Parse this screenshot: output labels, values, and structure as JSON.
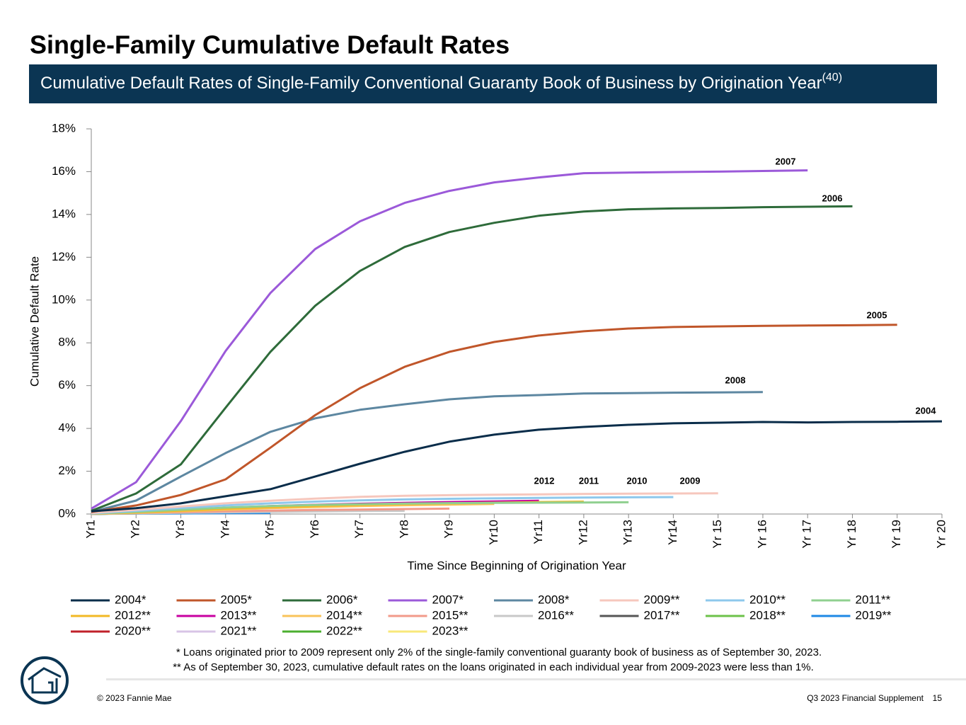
{
  "chart_data": {
    "type": "line",
    "title": "Single-Family Cumulative Default Rates",
    "subtitle": "Cumulative Default Rates of Single-Family Conventional Guaranty Book of Business by Origination Year",
    "subtitle_note": "(40)",
    "ylabel": "Cumulative Default Rate",
    "xlabel": "Time Since Beginning of Origination Year",
    "categories": [
      "Yr1",
      "Yr2",
      "Yr3",
      "Yr4",
      "Yr5",
      "Yr6",
      "Yr7",
      "Yr8",
      "Yr9",
      "Yr10",
      "Yr11",
      "Yr12",
      "Yr13",
      "Yr14",
      "Yr 15",
      "Yr 16",
      "Yr 17",
      "Yr 18",
      "Yr 19",
      "Yr 20"
    ],
    "ylim": [
      0,
      18
    ],
    "yticks": [
      {
        "value": 0,
        "label": "0%"
      },
      {
        "value": 2,
        "label": "2%"
      },
      {
        "value": 4,
        "label": "4%"
      },
      {
        "value": 6,
        "label": "6%"
      },
      {
        "value": 8,
        "label": "8%"
      },
      {
        "value": 10,
        "label": "10%"
      },
      {
        "value": 12,
        "label": "12%"
      },
      {
        "value": 14,
        "label": "14%"
      },
      {
        "value": 16,
        "label": "16%"
      },
      {
        "value": 18,
        "label": "18%"
      }
    ],
    "annotations": [
      "2007",
      "2006",
      "2005",
      "2008",
      "2004",
      "2012",
      "2011",
      "2010",
      "2009"
    ],
    "series": [
      {
        "name": "2004*",
        "color": "#0a2d4a",
        "values": [
          0.13,
          0.27,
          0.5,
          0.83,
          1.16,
          1.75,
          2.35,
          2.91,
          3.38,
          3.71,
          3.94,
          4.07,
          4.17,
          4.24,
          4.27,
          4.3,
          4.28,
          4.3,
          4.31,
          4.33
        ]
      },
      {
        "name": "2005*",
        "color": "#c0562a",
        "values": [
          0.1,
          0.4,
          0.89,
          1.62,
          3.1,
          4.62,
          5.88,
          6.88,
          7.58,
          8.04,
          8.34,
          8.54,
          8.67,
          8.74,
          8.77,
          8.79,
          8.81,
          8.82,
          8.84,
          null
        ]
      },
      {
        "name": "2006*",
        "color": "#2e6b3a",
        "values": [
          0.15,
          0.96,
          2.32,
          4.97,
          7.58,
          9.73,
          11.36,
          12.48,
          13.18,
          13.61,
          13.94,
          14.14,
          14.24,
          14.28,
          14.3,
          14.34,
          14.36,
          14.38,
          null,
          null
        ]
      },
      {
        "name": "2007*",
        "color": "#9b59d9",
        "values": [
          0.25,
          1.49,
          4.34,
          7.62,
          10.33,
          12.38,
          13.68,
          14.54,
          15.1,
          15.5,
          15.73,
          15.93,
          15.96,
          15.98,
          16.0,
          16.03,
          16.06,
          null,
          null,
          null
        ]
      },
      {
        "name": "2008*",
        "color": "#5d87a1",
        "values": [
          0.1,
          0.63,
          1.75,
          2.85,
          3.84,
          4.47,
          4.87,
          5.13,
          5.36,
          5.5,
          5.56,
          5.63,
          5.65,
          5.67,
          5.68,
          5.7,
          null,
          null,
          null,
          null
        ]
      },
      {
        "name": "2009**",
        "color": "#f6c7bd",
        "values": [
          0.05,
          0.2,
          0.35,
          0.5,
          0.62,
          0.72,
          0.8,
          0.85,
          0.88,
          0.9,
          0.92,
          0.94,
          0.95,
          0.96,
          0.97,
          null,
          null,
          null,
          null,
          null
        ]
      },
      {
        "name": "2010**",
        "color": "#8ec8ec",
        "values": [
          0.03,
          0.15,
          0.28,
          0.4,
          0.5,
          0.58,
          0.64,
          0.68,
          0.71,
          0.73,
          0.75,
          0.77,
          0.78,
          0.79,
          null,
          null,
          null,
          null,
          null,
          null
        ]
      },
      {
        "name": "2011**",
        "color": "#90d090",
        "values": [
          0.02,
          0.1,
          0.2,
          0.3,
          0.37,
          0.42,
          0.46,
          0.49,
          0.51,
          0.52,
          0.53,
          0.54,
          0.55,
          null,
          null,
          null,
          null,
          null,
          null,
          null
        ]
      },
      {
        "name": "2012**",
        "color": "#f2b824",
        "values": [
          0.02,
          0.08,
          0.16,
          0.25,
          0.32,
          0.38,
          0.43,
          0.47,
          0.5,
          0.53,
          0.56,
          0.58,
          null,
          null,
          null,
          null,
          null,
          null,
          null,
          null
        ]
      },
      {
        "name": "2013**",
        "color": "#c800a0",
        "values": [
          0.02,
          0.1,
          0.2,
          0.29,
          0.37,
          0.43,
          0.48,
          0.52,
          0.56,
          0.59,
          0.62,
          null,
          null,
          null,
          null,
          null,
          null,
          null,
          null,
          null
        ]
      },
      {
        "name": "2014**",
        "color": "#f9c35a",
        "values": [
          0.01,
          0.06,
          0.13,
          0.2,
          0.27,
          0.32,
          0.37,
          0.41,
          0.44,
          0.47,
          null,
          null,
          null,
          null,
          null,
          null,
          null,
          null,
          null,
          null
        ]
      },
      {
        "name": "2015**",
        "color": "#f29a8a",
        "values": [
          0.01,
          0.05,
          0.09,
          0.13,
          0.16,
          0.19,
          0.21,
          0.23,
          0.25,
          null,
          null,
          null,
          null,
          null,
          null,
          null,
          null,
          null,
          null,
          null
        ]
      },
      {
        "name": "2016**",
        "color": "#c8c8c8",
        "values": [
          0.01,
          0.03,
          0.06,
          0.08,
          0.1,
          0.12,
          0.14,
          0.15,
          null,
          null,
          null,
          null,
          null,
          null,
          null,
          null,
          null,
          null,
          null,
          null
        ]
      },
      {
        "name": "2017**",
        "color": "#555555",
        "values": [
          0.01,
          0.03,
          0.06,
          0.09,
          0.12,
          0.15,
          0.17,
          null,
          null,
          null,
          null,
          null,
          null,
          null,
          null,
          null,
          null,
          null,
          null,
          null
        ]
      },
      {
        "name": "2018**",
        "color": "#6cc24a",
        "values": [
          0.01,
          0.03,
          0.06,
          0.09,
          0.12,
          0.15,
          null,
          null,
          null,
          null,
          null,
          null,
          null,
          null,
          null,
          null,
          null,
          null,
          null,
          null
        ]
      },
      {
        "name": "2019**",
        "color": "#1e88e5",
        "values": [
          0.01,
          0.02,
          0.03,
          0.04,
          0.05,
          null,
          null,
          null,
          null,
          null,
          null,
          null,
          null,
          null,
          null,
          null,
          null,
          null,
          null,
          null
        ]
      },
      {
        "name": "2020**",
        "color": "#c0212a",
        "values": [
          0.01,
          0.04,
          0.08,
          0.12,
          null,
          null,
          null,
          null,
          null,
          null,
          null,
          null,
          null,
          null,
          null,
          null,
          null,
          null,
          null,
          null
        ]
      },
      {
        "name": "2021**",
        "color": "#d8c4e6",
        "values": [
          0.01,
          0.04,
          0.08,
          null,
          null,
          null,
          null,
          null,
          null,
          null,
          null,
          null,
          null,
          null,
          null,
          null,
          null,
          null,
          null,
          null
        ]
      },
      {
        "name": "2022**",
        "color": "#4caf30",
        "values": [
          0.01,
          0.03,
          null,
          null,
          null,
          null,
          null,
          null,
          null,
          null,
          null,
          null,
          null,
          null,
          null,
          null,
          null,
          null,
          null,
          null
        ]
      },
      {
        "name": "2023**",
        "color": "#f8e87a",
        "values": [
          0.0,
          null,
          null,
          null,
          null,
          null,
          null,
          null,
          null,
          null,
          null,
          null,
          null,
          null,
          null,
          null,
          null,
          null,
          null,
          null
        ]
      }
    ],
    "footnotes": [
      "* Loans originated prior to 2009 represent only 2% of the single-family conventional guaranty book of business as of September 30, 2023.",
      "** As of September 30, 2023, cumulative default rates on the loans originated in each individual year from 2009-2023 were less than 1%."
    ]
  },
  "footer": {
    "copyright": "© 2023 Fannie Mae",
    "publication": "Q3 2023 Financial Supplement",
    "page": "15"
  }
}
